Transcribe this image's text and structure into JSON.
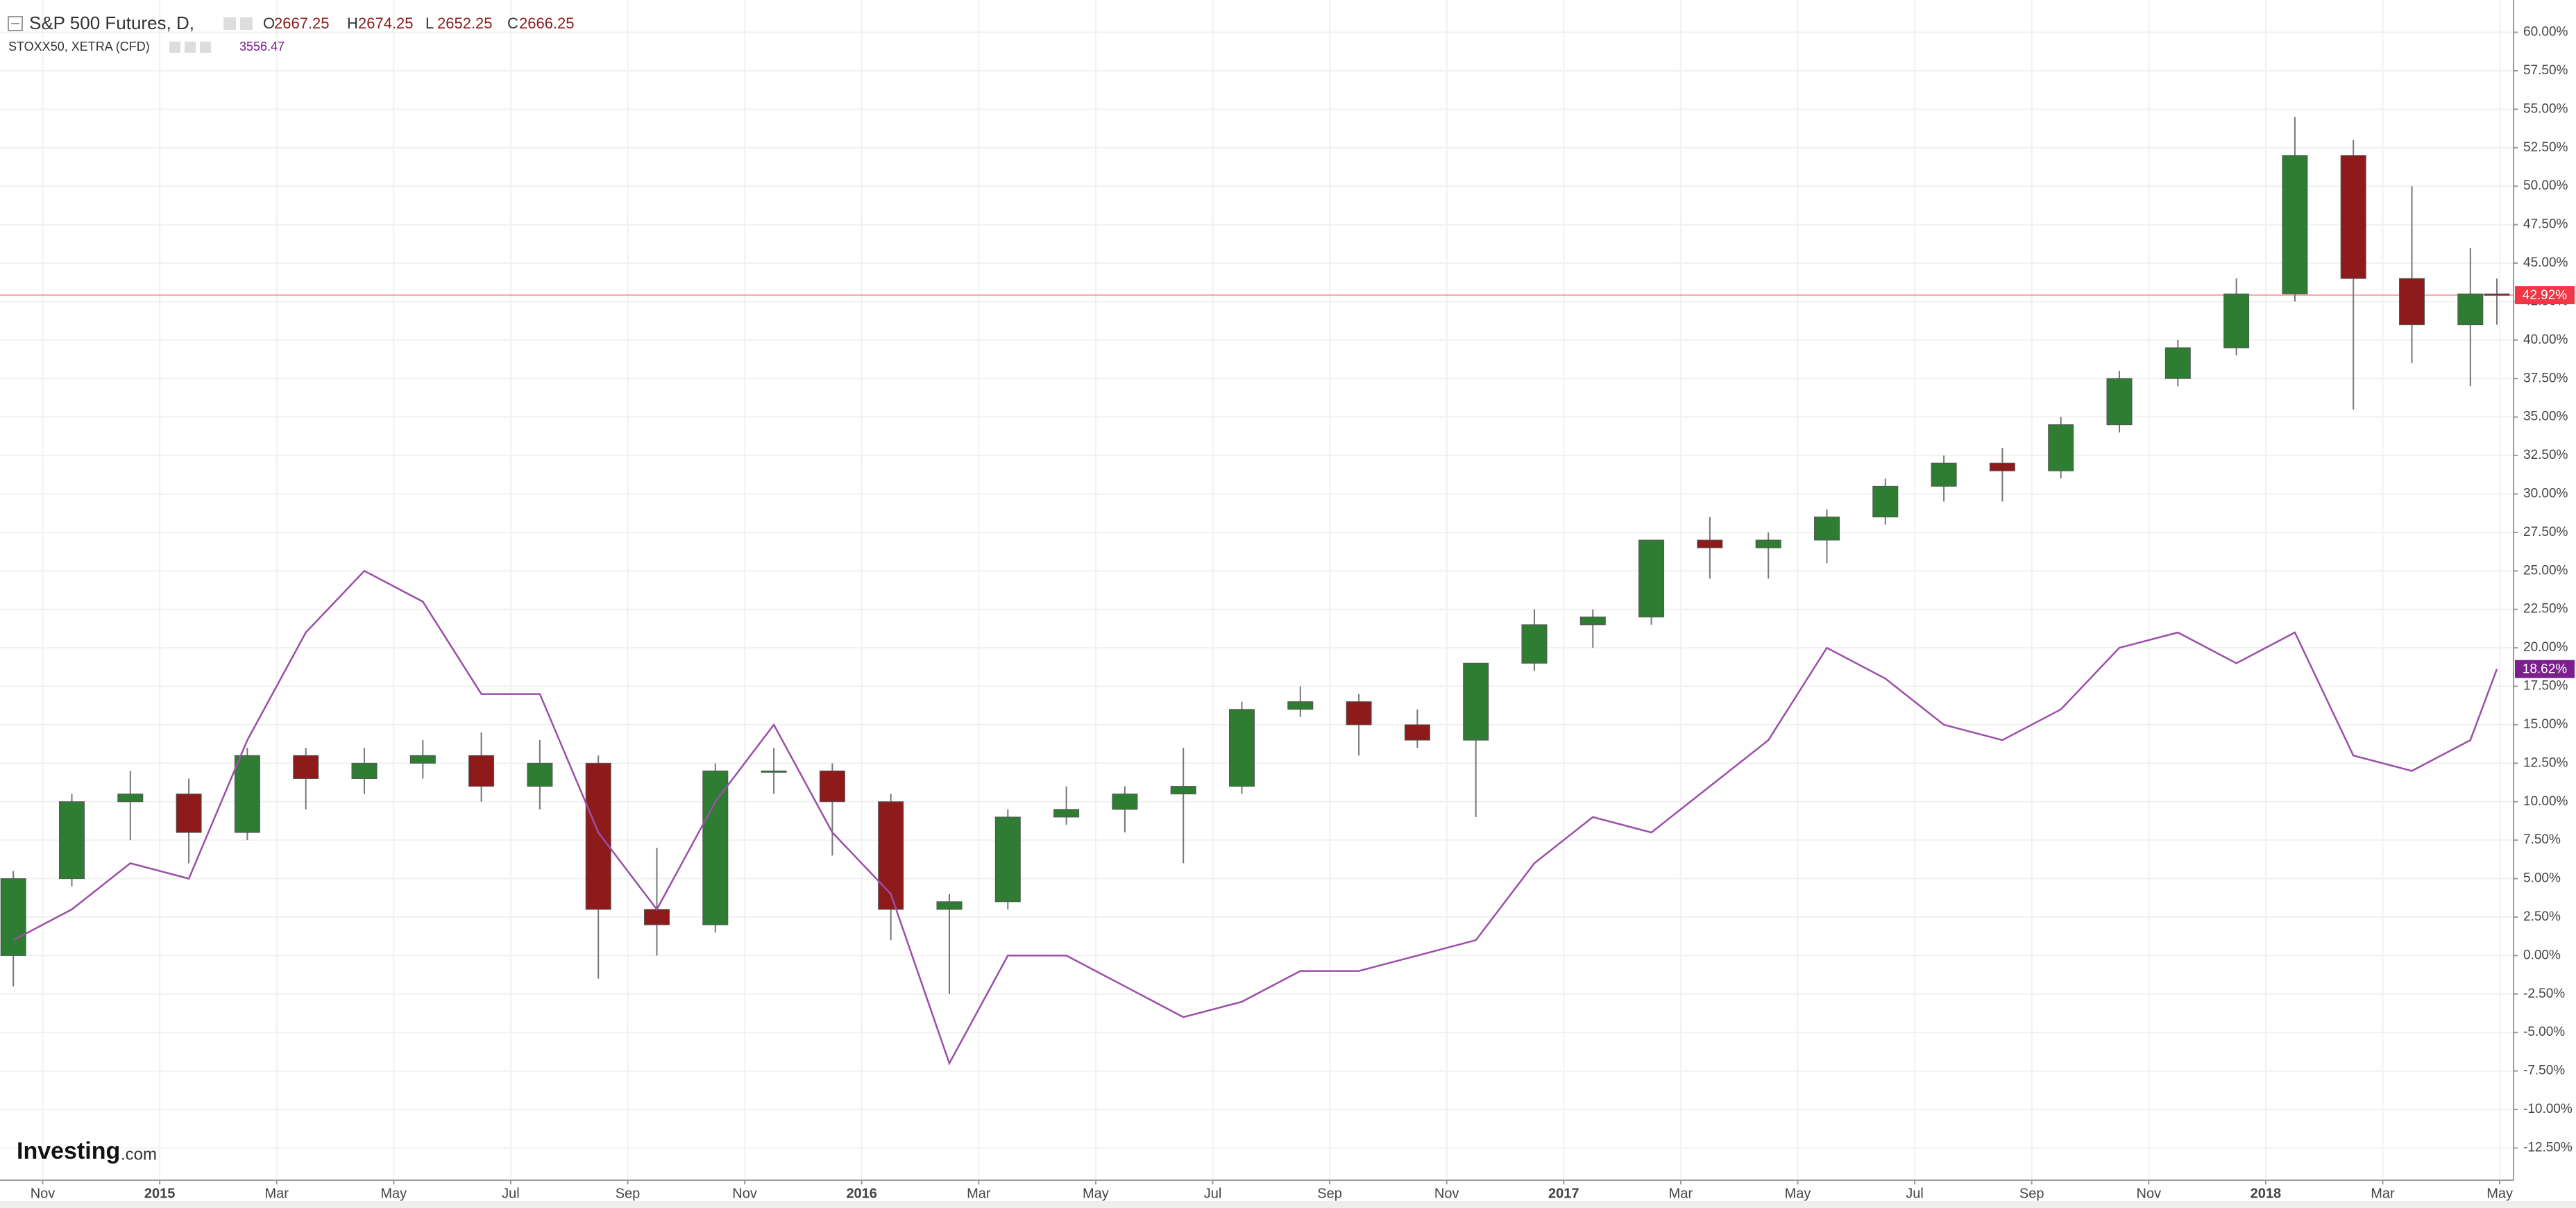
{
  "chart_data": {
    "type": "candlestick",
    "x": [
      "2014-10",
      "2014-11",
      "2014-12",
      "2015-01",
      "2015-02",
      "2015-03",
      "2015-04",
      "2015-05",
      "2015-06",
      "2015-07",
      "2015-08",
      "2015-09",
      "2015-10",
      "2015-11",
      "2015-12",
      "2016-01",
      "2016-02",
      "2016-03",
      "2016-04",
      "2016-05",
      "2016-06",
      "2016-07",
      "2016-08",
      "2016-09",
      "2016-10",
      "2016-11",
      "2016-12",
      "2017-01",
      "2017-02",
      "2017-03",
      "2017-04",
      "2017-05",
      "2017-06",
      "2017-07",
      "2017-08",
      "2017-09",
      "2017-10",
      "2017-11",
      "2017-12",
      "2018-01",
      "2018-02",
      "2018-03",
      "2018-04",
      "2018-05"
    ],
    "xticks": [
      {
        "value": "2014-11",
        "label": "Nov"
      },
      {
        "value": "2015-01",
        "label": "2015"
      },
      {
        "value": "2015-03",
        "label": "Mar"
      },
      {
        "value": "2015-05",
        "label": "May"
      },
      {
        "value": "2015-07",
        "label": "Jul"
      },
      {
        "value": "2015-09",
        "label": "Sep"
      },
      {
        "value": "2015-11",
        "label": "Nov"
      },
      {
        "value": "2016-01",
        "label": "2016"
      },
      {
        "value": "2016-03",
        "label": "Mar"
      },
      {
        "value": "2016-05",
        "label": "May"
      },
      {
        "value": "2016-07",
        "label": "Jul"
      },
      {
        "value": "2016-09",
        "label": "Sep"
      },
      {
        "value": "2016-11",
        "label": "Nov"
      },
      {
        "value": "2017-01",
        "label": "2017"
      },
      {
        "value": "2017-03",
        "label": "Mar"
      },
      {
        "value": "2017-05",
        "label": "May"
      },
      {
        "value": "2017-07",
        "label": "Jul"
      },
      {
        "value": "2017-09",
        "label": "Sep"
      },
      {
        "value": "2017-11",
        "label": "Nov"
      },
      {
        "value": "2018-01",
        "label": "2018"
      },
      {
        "value": "2018-03",
        "label": "Mar"
      },
      {
        "value": "2018-05",
        "label": "May"
      }
    ],
    "ylim": [
      -14.6,
      62.1
    ],
    "yticks": [
      {
        "value": -12.5,
        "label": "-12.50%"
      },
      {
        "value": -10,
        "label": "-10.00%"
      },
      {
        "value": -7.5,
        "label": "-7.50%"
      },
      {
        "value": -5,
        "label": "-5.00%"
      },
      {
        "value": -2.5,
        "label": "-2.50%"
      },
      {
        "value": 0,
        "label": "0.00%"
      },
      {
        "value": 2.5,
        "label": "2.50%"
      },
      {
        "value": 5,
        "label": "5.00%"
      },
      {
        "value": 7.5,
        "label": "7.50%"
      },
      {
        "value": 10,
        "label": "10.00%"
      },
      {
        "value": 12.5,
        "label": "12.50%"
      },
      {
        "value": 15,
        "label": "15.00%"
      },
      {
        "value": 17.5,
        "label": "17.50%"
      },
      {
        "value": 20,
        "label": "20.00%"
      },
      {
        "value": 22.5,
        "label": "22.50%"
      },
      {
        "value": 25,
        "label": "25.00%"
      },
      {
        "value": 27.5,
        "label": "27.50%"
      },
      {
        "value": 30,
        "label": "30.00%"
      },
      {
        "value": 32.5,
        "label": "32.50%"
      },
      {
        "value": 35,
        "label": "35.00%"
      },
      {
        "value": 37.5,
        "label": "37.50%"
      },
      {
        "value": 40,
        "label": "40.00%"
      },
      {
        "value": 42.5,
        "label": "42.50%"
      },
      {
        "value": 45,
        "label": "45.00%"
      },
      {
        "value": 47.5,
        "label": "47.50%"
      },
      {
        "value": 50,
        "label": "50.00%"
      },
      {
        "value": 52.5,
        "label": "52.50%"
      },
      {
        "value": 55,
        "label": "55.00%"
      },
      {
        "value": 57.5,
        "label": "57.50%"
      },
      {
        "value": 60,
        "label": "60.00%"
      }
    ],
    "grid": true,
    "series": [
      {
        "name": "S&P 500 Futures, D,",
        "type": "candlestick",
        "up_color": "#2f7d32",
        "down_color": "#8e1b1b",
        "open": [
          0,
          5,
          10,
          10.5,
          8,
          13,
          11.5,
          12.5,
          13,
          11,
          12.5,
          3,
          2,
          12,
          12,
          10,
          3,
          3.5,
          9,
          9.5,
          10.5,
          11,
          16,
          16.5,
          15,
          14,
          19,
          21.5,
          22,
          27,
          26.5,
          27,
          28.5,
          30.5,
          32,
          31.5,
          34.5,
          37.5,
          39.5,
          43,
          52,
          44,
          41,
          43
        ],
        "high": [
          5.5,
          10.5,
          12,
          11.5,
          13.5,
          13.5,
          13.5,
          14,
          14.5,
          14,
          13,
          7,
          12.5,
          13.5,
          12.5,
          10.5,
          4,
          9.5,
          11,
          11,
          13.5,
          16.5,
          17.5,
          17,
          16,
          19,
          22.5,
          22.5,
          27,
          28.5,
          27.5,
          29,
          31,
          32.5,
          33,
          35,
          38,
          40,
          44,
          54.5,
          53,
          50,
          46,
          44
        ],
        "low": [
          -2,
          4.5,
          7.5,
          6,
          7.5,
          9.5,
          10.5,
          11.5,
          10,
          9.5,
          -1.5,
          0,
          1.5,
          10.5,
          6.5,
          1,
          -2.5,
          3,
          8.5,
          8,
          6,
          10.5,
          15.5,
          13,
          13.5,
          9,
          18.5,
          20,
          21.5,
          24.5,
          24.5,
          25.5,
          28,
          29.5,
          29.5,
          31,
          34,
          37,
          39,
          42.5,
          35.5,
          38.5,
          37,
          41
        ],
        "close": [
          5,
          10,
          10.5,
          8,
          13,
          11.5,
          12.5,
          13,
          11,
          12.5,
          3,
          2,
          12,
          12,
          10,
          3,
          3.5,
          9,
          9.5,
          10.5,
          11,
          16,
          16.5,
          15,
          14,
          19,
          21.5,
          22,
          27,
          26.5,
          27,
          28.5,
          30.5,
          32,
          31.5,
          34.5,
          37.5,
          39.5,
          43,
          52,
          44,
          41,
          43,
          42.92
        ],
        "ohlc": [
          {
            "label": "O",
            "value": 2667.25
          },
          {
            "label": "H",
            "value": 2674.25
          },
          {
            "label": "L",
            "value": 2652.25
          },
          {
            "label": "C",
            "value": 2666.25
          }
        ],
        "last": {
          "value": 42.92,
          "label": "42.92%"
        },
        "last_color": "#f23645"
      },
      {
        "name": "STOXX50, XETRA (CFD)",
        "type": "line",
        "color": "#9b4fa8",
        "values": [
          1,
          3,
          6,
          5,
          14,
          21,
          25,
          23,
          17,
          17,
          8,
          3,
          10,
          15,
          8,
          4,
          -7,
          0,
          0,
          -2,
          -4,
          -3,
          -1,
          -1,
          0,
          1,
          6,
          9,
          8,
          11,
          14,
          20,
          18,
          15,
          14,
          16,
          20,
          21,
          19,
          21,
          13,
          12,
          14,
          18.62
        ],
        "quote": 3556.47,
        "last": {
          "value": 18.62,
          "label": "18.62%"
        },
        "last_color": "#7b1f8c"
      }
    ],
    "logo": {
      "brand": "Investing",
      "suffix": ".com"
    }
  }
}
